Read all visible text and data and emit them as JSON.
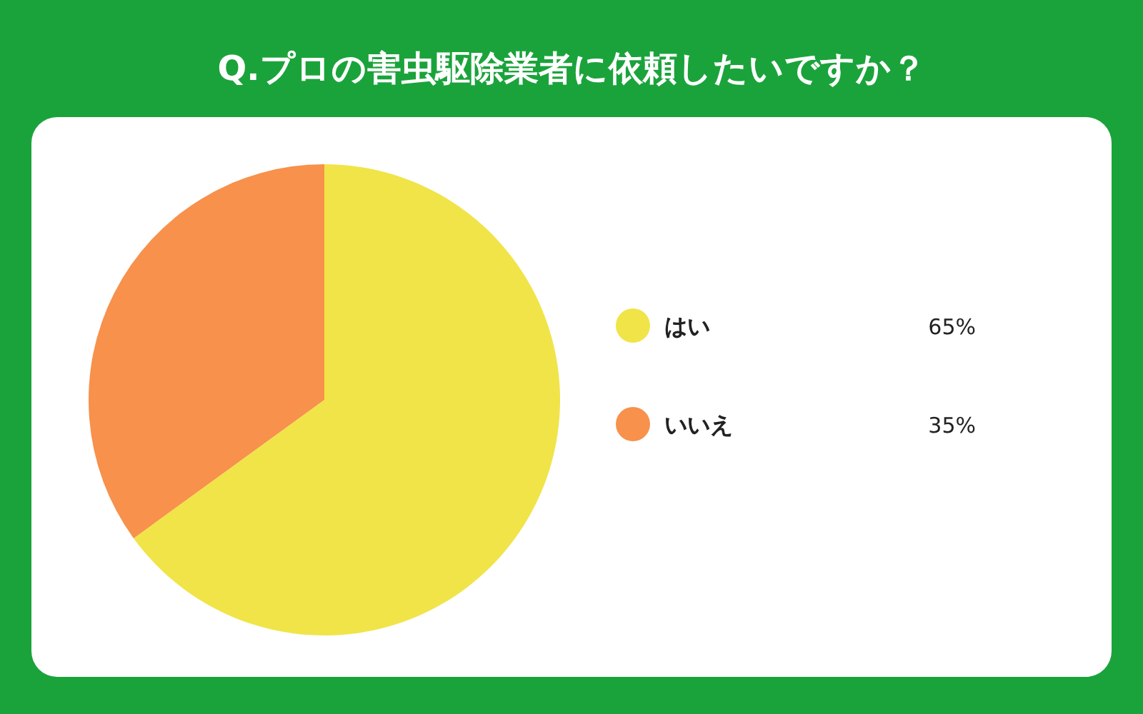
{
  "chart_data": {
    "type": "pie",
    "title": "Q.プロの害虫駆除業者に依頼したいですか？",
    "categories": [
      "はい",
      "いいえ"
    ],
    "values": [
      65,
      35
    ],
    "colors": [
      "#f0e448",
      "#f7914b"
    ],
    "value_labels": [
      "65%",
      "35%"
    ],
    "legend": "right"
  }
}
